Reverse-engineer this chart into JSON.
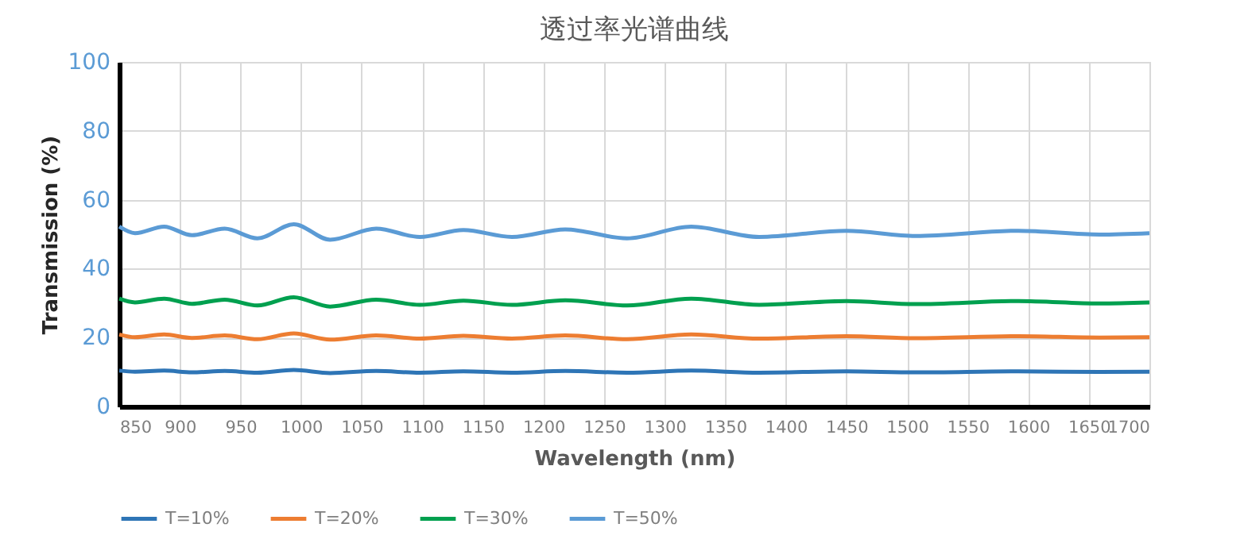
{
  "chart_data": {
    "type": "line",
    "title": "透过率光谱曲线",
    "xlabel": "Wavelength (nm)",
    "ylabel": "Transmission (%)",
    "x": [
      850,
      863,
      887,
      910,
      937,
      964,
      994,
      1024,
      1062,
      1098,
      1134,
      1174,
      1218,
      1269,
      1322,
      1378,
      1450,
      1507,
      1592,
      1659,
      1700
    ],
    "xlim": [
      850,
      1700
    ],
    "xticks": [
      850,
      900,
      950,
      1000,
      1050,
      1100,
      1150,
      1200,
      1250,
      1300,
      1350,
      1400,
      1450,
      1500,
      1550,
      1600,
      1650,
      1700
    ],
    "ylim": [
      0,
      100
    ],
    "yticks": [
      0,
      20,
      40,
      60,
      80,
      100
    ],
    "grid": true,
    "legend": "bottom",
    "line_style": "solid",
    "marker": "none",
    "series": [
      {
        "name": "T=10%",
        "color": "#2e75b6",
        "values": [
          10.4,
          10.1,
          10.4,
          9.9,
          10.3,
          9.8,
          10.6,
          9.7,
          10.3,
          9.8,
          10.2,
          9.8,
          10.3,
          9.8,
          10.4,
          9.8,
          10.2,
          9.9,
          10.2,
          10.0,
          10.1
        ]
      },
      {
        "name": "T=20%",
        "color": "#ed7d31",
        "values": [
          20.9,
          20.1,
          20.9,
          19.9,
          20.6,
          19.5,
          21.2,
          19.4,
          20.6,
          19.7,
          20.5,
          19.7,
          20.6,
          19.5,
          20.9,
          19.7,
          20.4,
          19.8,
          20.4,
          20.0,
          20.1
        ]
      },
      {
        "name": "T=30%",
        "color": "#00a04f",
        "values": [
          31.3,
          30.2,
          31.3,
          29.8,
          31.0,
          29.3,
          31.7,
          29.0,
          31.0,
          29.5,
          30.7,
          29.5,
          30.8,
          29.3,
          31.3,
          29.5,
          30.6,
          29.7,
          30.6,
          29.9,
          30.2
        ]
      },
      {
        "name": "T=50%",
        "color": "#5b9bd5",
        "values": [
          52.2,
          50.3,
          52.2,
          49.7,
          51.6,
          48.8,
          52.9,
          48.4,
          51.6,
          49.2,
          51.2,
          49.2,
          51.4,
          48.8,
          52.2,
          49.2,
          51.0,
          49.5,
          51.0,
          49.9,
          50.3
        ]
      }
    ]
  }
}
